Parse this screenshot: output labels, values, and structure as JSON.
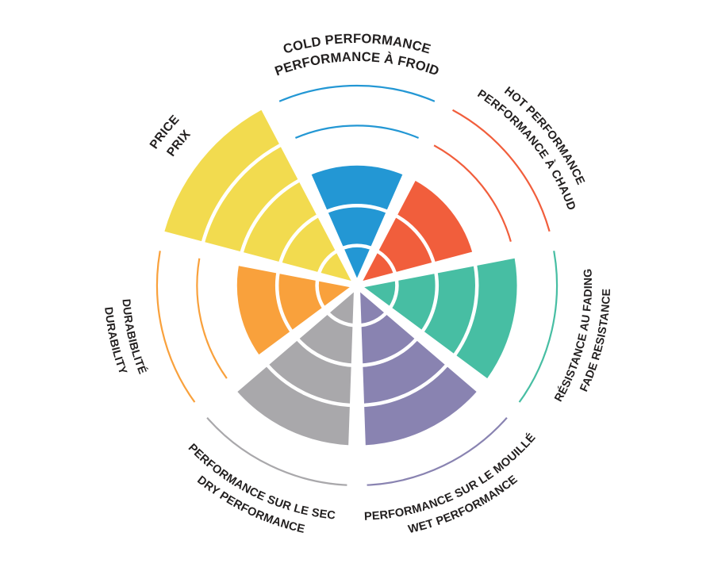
{
  "chart_data": {
    "type": "radial-sector-chart",
    "title": "",
    "max": 5,
    "grid": "concentric-rings",
    "background": "#ffffff",
    "text_color": "#221f1f",
    "categories": [
      {
        "name": "cold-performance",
        "label_en": "COLD PERFORMANCE",
        "label_fr": "PERFORMANCE À FROID",
        "value": 3,
        "color": "#2397d4"
      },
      {
        "name": "hot-performance",
        "label_en": "HOT PERFORMANCE",
        "label_fr": "PERFORMANCE À CHAUD",
        "value": 3,
        "color": "#f15e3c"
      },
      {
        "name": "fade-resistance",
        "label_en": "FADE RESISTANCE",
        "label_fr": "RÉSISTANCE AU FADING",
        "value": 4,
        "color": "#47bea3"
      },
      {
        "name": "wet-performance",
        "label_en": "WET PERFORMANCE",
        "label_fr": "PERFORMANCE SUR LE MOUILLÉ",
        "value": 4,
        "color": "#8983b1"
      },
      {
        "name": "dry-performance",
        "label_en": "DRY PERFORMANCE",
        "label_fr": "PERFORMANCE SUR LE SEC",
        "value": 4,
        "color": "#a9a8ab"
      },
      {
        "name": "durability",
        "label_en": "DURABILITY",
        "label_fr": "DURABIBLITÉ",
        "value": 3,
        "color": "#f9a13c"
      },
      {
        "name": "price",
        "label_en": "PRICE",
        "label_fr": "PRIX",
        "value": 5,
        "color": "#f2db4f"
      }
    ]
  }
}
